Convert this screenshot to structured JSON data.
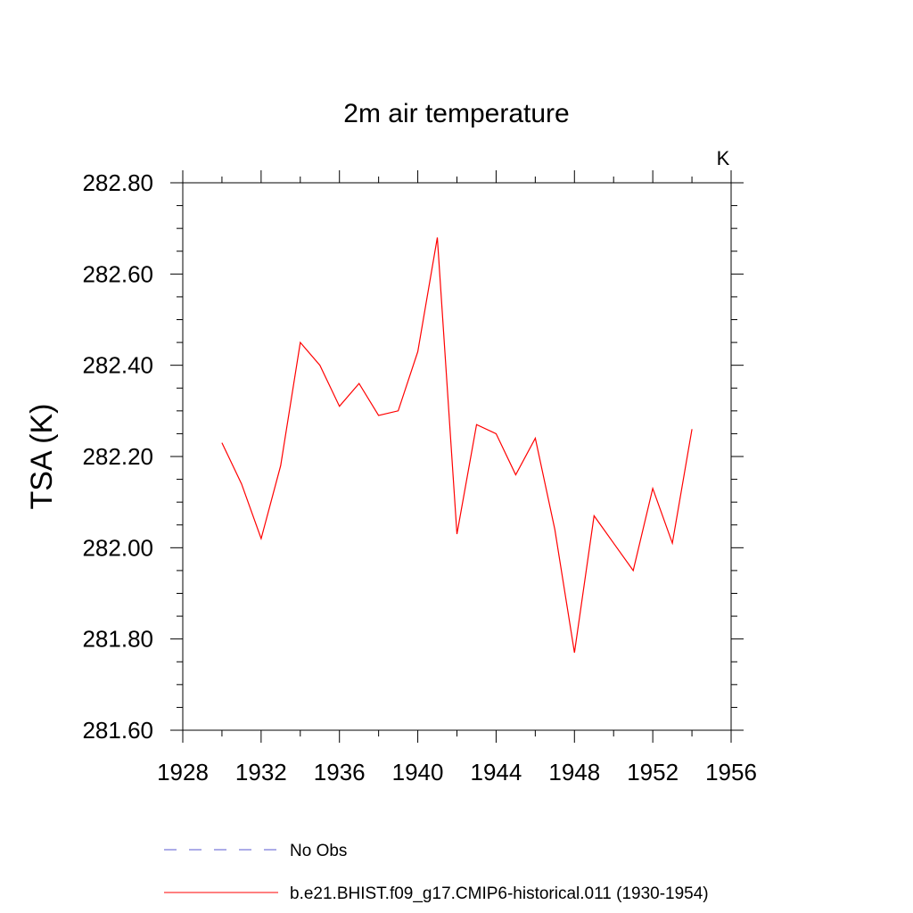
{
  "chart_data": {
    "type": "line",
    "title": "2m air temperature",
    "units_label": "K",
    "xlabel": "",
    "ylabel": "TSA  (K)",
    "xlim": [
      1928,
      1956
    ],
    "ylim": [
      281.6,
      282.8
    ],
    "x_ticks": [
      1928,
      1932,
      1936,
      1940,
      1944,
      1948,
      1952,
      1956
    ],
    "x_tick_labels": [
      "1928",
      "1932",
      "1936",
      "1940",
      "1944",
      "1948",
      "1952",
      "1956"
    ],
    "y_ticks": [
      281.6,
      281.8,
      282.0,
      282.2,
      282.4,
      282.6,
      282.8
    ],
    "y_tick_labels": [
      "281.60",
      "281.80",
      "282.00",
      "282.20",
      "282.40",
      "282.60",
      "282.80"
    ],
    "grid": false,
    "legend_position": "bottom",
    "series": [
      {
        "name": "No Obs",
        "color": "#5a5ad0",
        "dash": "dashed",
        "x": [],
        "y": []
      },
      {
        "name": "b.e21.BHIST.f09_g17.CMIP6-historical.011 (1930-1954)",
        "color": "#ff0000",
        "dash": "solid",
        "x": [
          1930,
          1931,
          1932,
          1933,
          1934,
          1935,
          1936,
          1937,
          1938,
          1939,
          1940,
          1941,
          1942,
          1943,
          1944,
          1945,
          1946,
          1947,
          1948,
          1949,
          1950,
          1951,
          1952,
          1953,
          1954
        ],
        "y": [
          282.23,
          282.14,
          282.02,
          282.18,
          282.45,
          282.4,
          282.31,
          282.36,
          282.29,
          282.3,
          282.43,
          282.68,
          282.03,
          282.27,
          282.25,
          282.16,
          282.24,
          282.04,
          281.77,
          282.07,
          282.01,
          281.95,
          282.13,
          282.01,
          282.26
        ]
      }
    ]
  }
}
